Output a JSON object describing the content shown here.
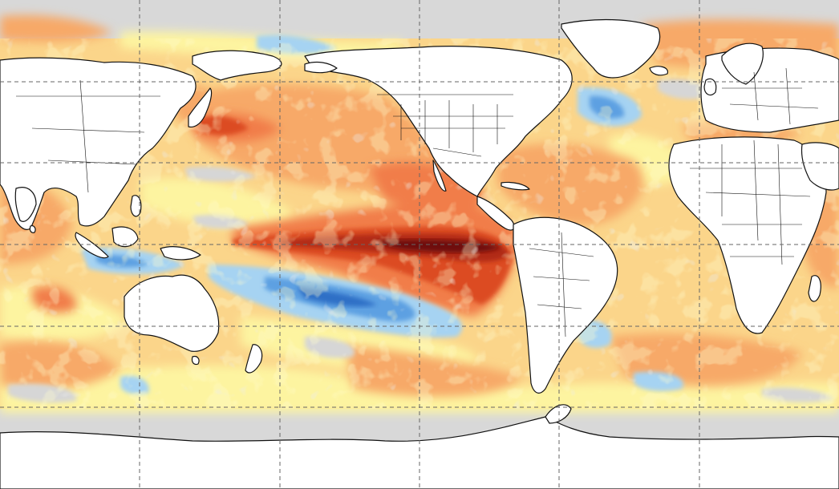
{
  "map": {
    "projection": "equirectangular",
    "view": "sea-surface-temperature-anomaly",
    "pattern": "el-nino",
    "lon_range": [
      20,
      380
    ],
    "lat_range": [
      90,
      -90
    ],
    "grid": {
      "lon_step": 60,
      "lat_step": 30,
      "style": "dashed",
      "color": "#666666"
    },
    "colors": {
      "land": "#ffffff",
      "coastline": "#111111",
      "ice_or_missing": "#d8d8d8",
      "anomaly_scale": [
        {
          "level": "strong-cool",
          "color": "#2f6fc6"
        },
        {
          "level": "moderate-cool",
          "color": "#5da0e2"
        },
        {
          "level": "weak-cool",
          "color": "#a6d3f2"
        },
        {
          "level": "neutral",
          "color": "#d6d6d6"
        },
        {
          "level": "weak-warm",
          "color": "#fdf4a0"
        },
        {
          "level": "mild-warm",
          "color": "#fbd58a"
        },
        {
          "level": "moderate-warm",
          "color": "#f7a968"
        },
        {
          "level": "warm",
          "color": "#f17d48"
        },
        {
          "level": "strong-warm",
          "color": "#dc4c24"
        },
        {
          "level": "very-strong-warm",
          "color": "#b12a12"
        },
        {
          "level": "extreme-warm",
          "color": "#6e0f08"
        }
      ]
    }
  }
}
